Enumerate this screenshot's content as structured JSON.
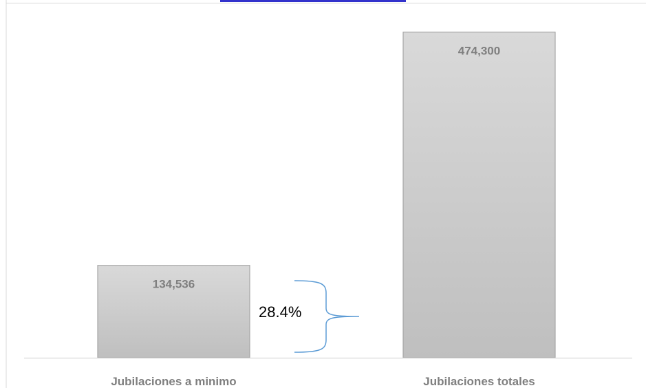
{
  "chart_data": {
    "type": "bar",
    "categories": [
      "Jubilaciones a minimo",
      "Jubilaciones totales"
    ],
    "values": [
      134536,
      474300
    ],
    "value_labels": [
      "134,536",
      "474,300"
    ],
    "annotation": "28.4%",
    "ylim": [
      0,
      500000
    ],
    "grid": false,
    "legend": "none",
    "colors": {
      "bar_top": "#d9d9d9",
      "bar_bottom": "#bfbfbf",
      "bar_stroke": "#a6a6a6",
      "label": "#7f7f7f",
      "brace": "#5b9bd5",
      "axis": "#d9d9d9",
      "title_hint": "#3333cc"
    }
  }
}
